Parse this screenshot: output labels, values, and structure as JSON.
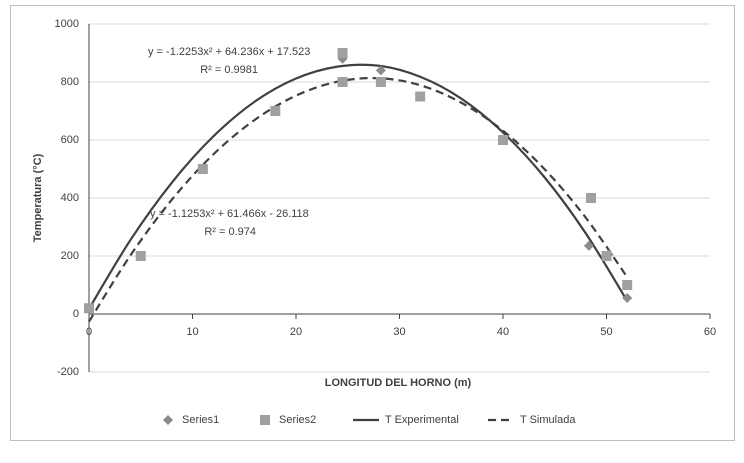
{
  "chart_data": {
    "type": "scatter",
    "x_label": "LONGITUD DEL HORNO (m)",
    "y_label": "Temperatura (°C)",
    "xlim": [
      0,
      60
    ],
    "xticks": [
      0,
      10,
      20,
      30,
      40,
      50,
      60
    ],
    "ylim": [
      -200,
      1000
    ],
    "yticks": [
      -200,
      0,
      200,
      400,
      600,
      800,
      1000
    ],
    "grid": true,
    "legend": "bottom",
    "annotations": [
      "y = -1.2253x² + 64.236x + 17.523",
      "R² = 0.9981",
      "y = -1.1253x² + 61.466x - 26.118",
      "R² = 0.974"
    ],
    "series": [
      {
        "name": "Series1",
        "color": "#8c8c8c",
        "marker": "diamond",
        "x": [
          0,
          24.5,
          28.2,
          48.3,
          50.2,
          52
        ],
        "values": [
          15,
          880,
          840,
          235,
          205,
          55
        ]
      },
      {
        "name": "Series2",
        "color": "#a0a0a0",
        "marker": "square",
        "x": [
          0,
          5,
          11,
          18,
          24.5,
          24.5,
          28.2,
          32,
          40,
          48.5,
          50,
          52
        ],
        "values": [
          20,
          200,
          500,
          700,
          800,
          900,
          800,
          750,
          600,
          400,
          200,
          100
        ]
      },
      {
        "name": "T Experimental",
        "color": "#404040",
        "line_style": "solid",
        "x": [
          0,
          4,
          8,
          12,
          16,
          20,
          24,
          28,
          32,
          36,
          40,
          44,
          48,
          52
        ],
        "values": [
          18,
          255,
          453,
          612,
          732,
          812,
          853,
          856,
          818,
          742,
          626,
          472,
          278,
          45
        ]
      },
      {
        "name": "T Simulada",
        "color": "#404040",
        "line_style": "dashed",
        "x": [
          0,
          4,
          8,
          12,
          16,
          20,
          24,
          28,
          32,
          36,
          40,
          44,
          48,
          52
        ],
        "values": [
          -26,
          202,
          394,
          550,
          669,
          753,
          801,
          813,
          789,
          728,
          632,
          500,
          332,
          127
        ]
      }
    ]
  }
}
